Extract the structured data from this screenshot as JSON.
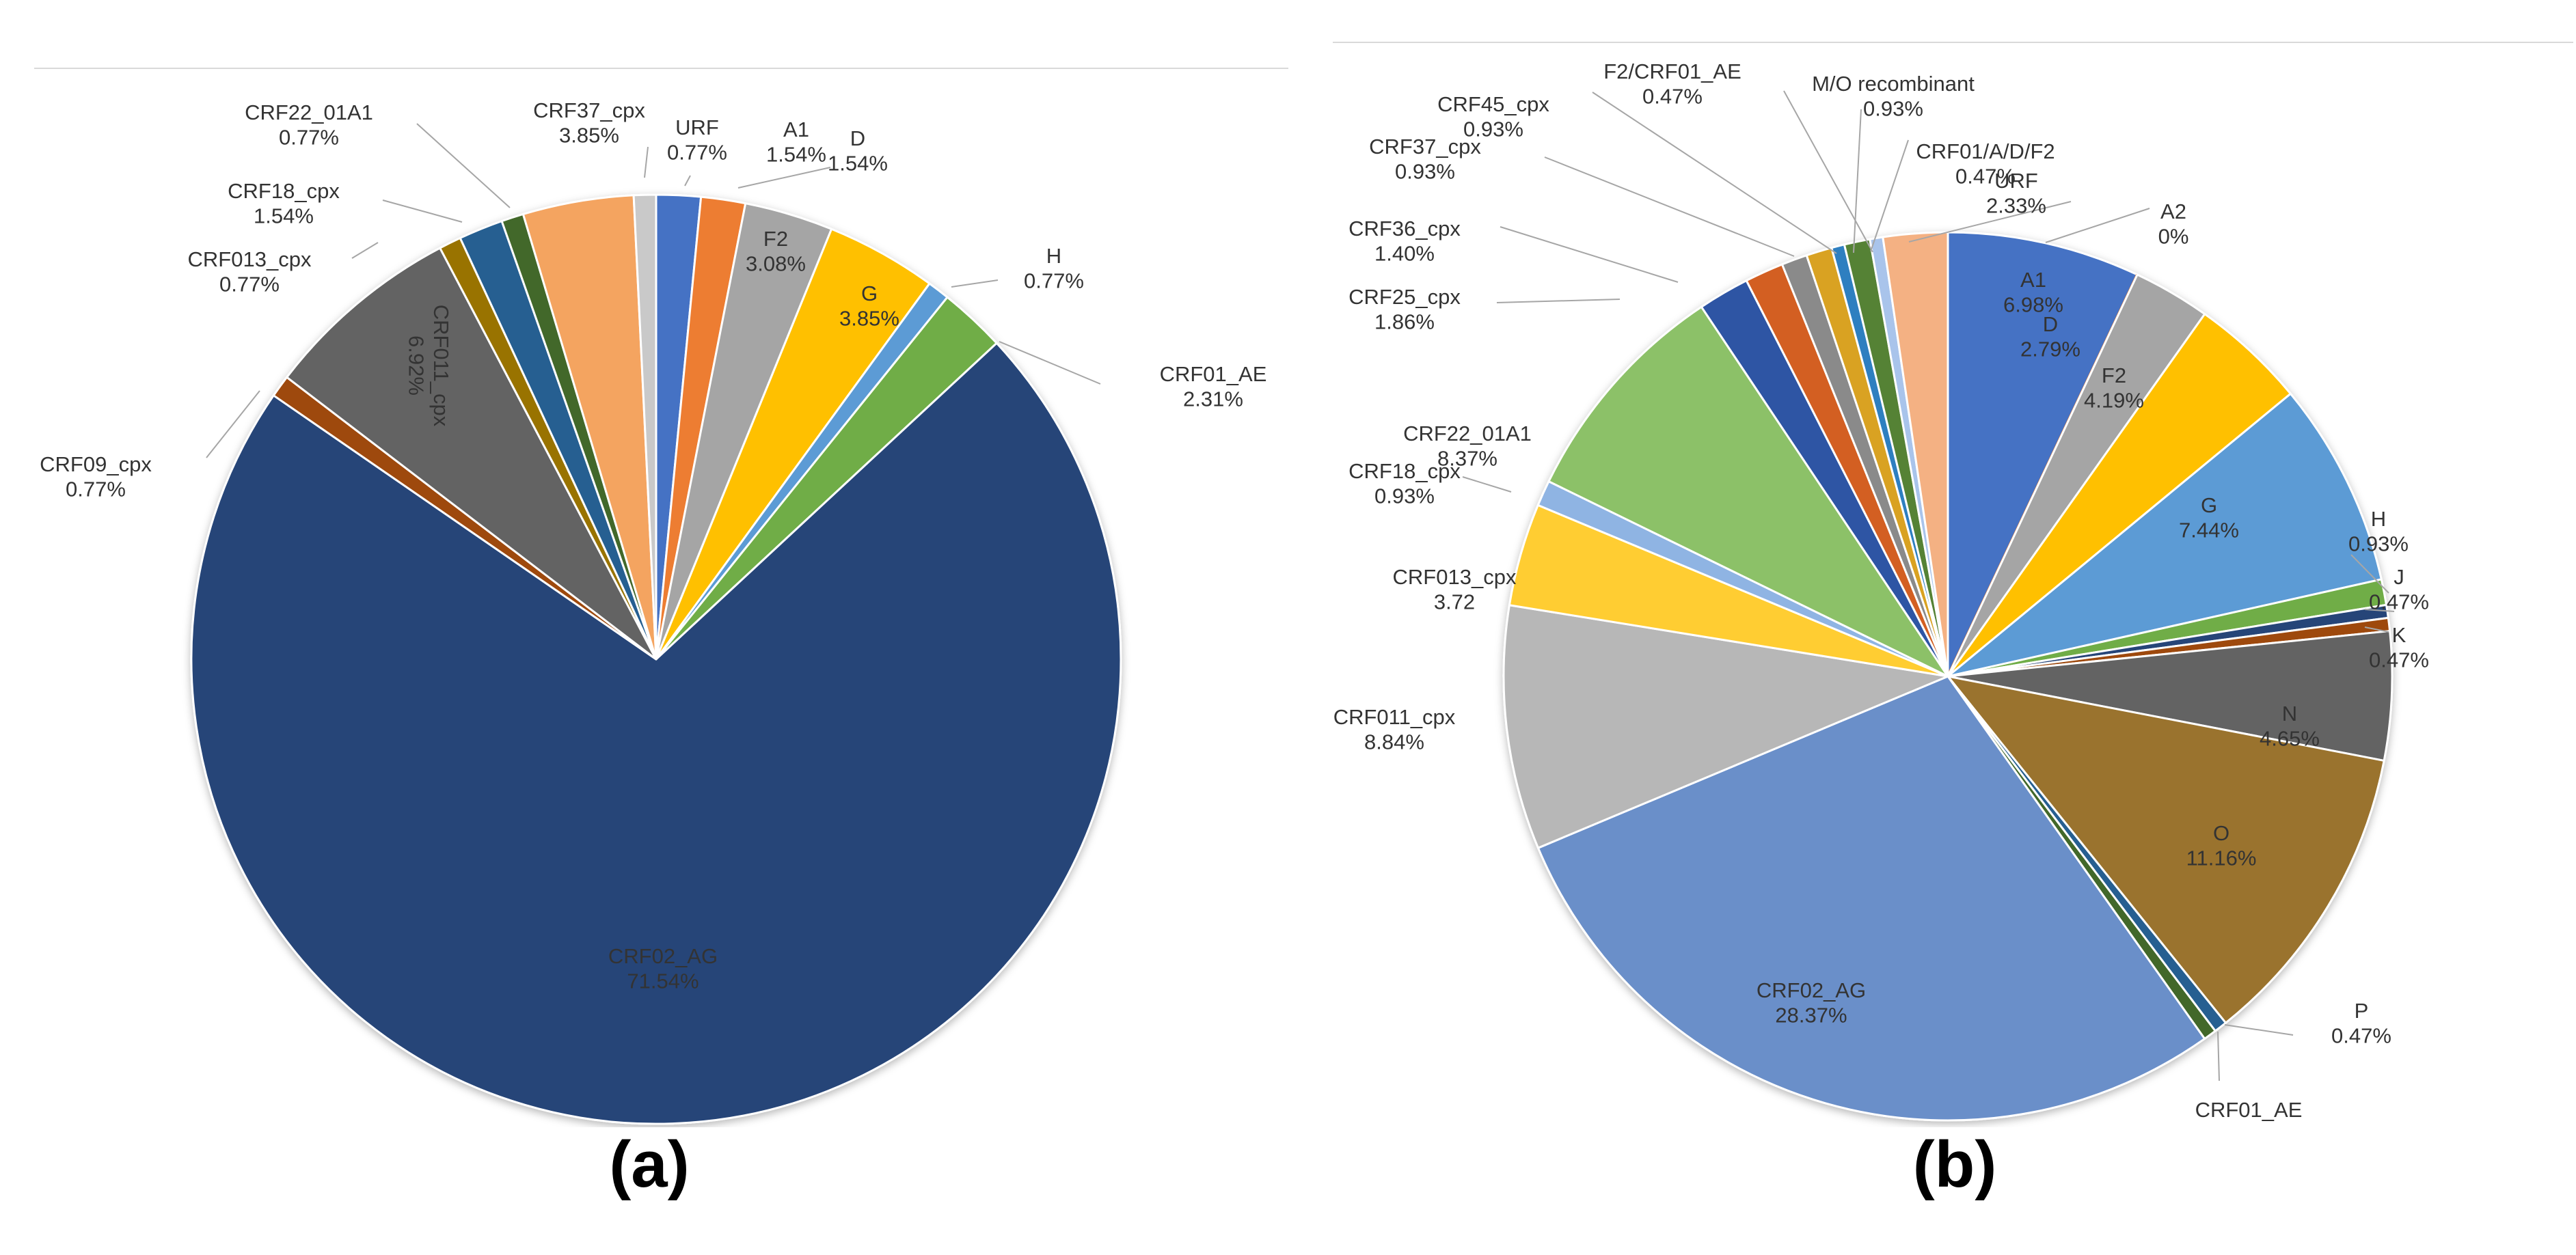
{
  "chart_data": [
    {
      "type": "pie",
      "caption": "(a)",
      "start_angle_deg": 0,
      "direction": "clockwise",
      "slices": [
        {
          "label": "A1",
          "pct": "1.54%",
          "value": 1.54,
          "color": "#4472c4"
        },
        {
          "label": "D",
          "pct": "1.54%",
          "value": 1.54,
          "color": "#ed7d31"
        },
        {
          "label": "F2",
          "pct": "3.08%",
          "value": 3.08,
          "color": "#a5a5a5"
        },
        {
          "label": "G",
          "pct": "3.85%",
          "value": 3.85,
          "color": "#ffc000"
        },
        {
          "label": "H",
          "pct": "0.77%",
          "value": 0.77,
          "color": "#5b9bd5"
        },
        {
          "label": "CRF01_AE",
          "pct": "2.31%",
          "value": 2.31,
          "color": "#70ad47"
        },
        {
          "label": "CRF02_AG",
          "pct": "71.54%",
          "value": 71.54,
          "color": "#264478"
        },
        {
          "label": "CRF09_cpx",
          "pct": "0.77%",
          "value": 0.77,
          "color": "#9e480e"
        },
        {
          "label": "CRF011_cpx",
          "pct": "6.92%",
          "value": 6.92,
          "color": "#636363"
        },
        {
          "label": "CRF013_cpx",
          "pct": "0.77%",
          "value": 0.77,
          "color": "#997300"
        },
        {
          "label": "CRF18_cpx",
          "pct": "1.54%",
          "value": 1.54,
          "color": "#255e91"
        },
        {
          "label": "CRF22_01A1",
          "pct": "0.77%",
          "value": 0.77,
          "color": "#43682b"
        },
        {
          "label": "CRF37_cpx",
          "pct": "3.85%",
          "value": 3.85,
          "color": "#f4a460"
        },
        {
          "label": "URF",
          "pct": "0.77%",
          "value": 0.77,
          "color": "#c9c9c9"
        }
      ]
    },
    {
      "type": "pie",
      "caption": "(b)",
      "start_angle_deg": 0,
      "direction": "clockwise",
      "slices": [
        {
          "label": "A1",
          "pct": "6.98%",
          "value": 6.98,
          "color": "#4472c4"
        },
        {
          "label": "A2",
          "pct": "0%",
          "value": 0.0,
          "color": "#ed7d31"
        },
        {
          "label": "D",
          "pct": "2.79%",
          "value": 2.79,
          "color": "#a5a5a5"
        },
        {
          "label": "F2",
          "pct": "4.19%",
          "value": 4.19,
          "color": "#ffc000"
        },
        {
          "label": "G",
          "pct": "7.44%",
          "value": 7.44,
          "color": "#5b9bd5"
        },
        {
          "label": "H",
          "pct": "0.93%",
          "value": 0.93,
          "color": "#70ad47"
        },
        {
          "label": "J",
          "pct": "0.47%",
          "value": 0.47,
          "color": "#264478"
        },
        {
          "label": "K",
          "pct": "0.47%",
          "value": 0.47,
          "color": "#9e480e"
        },
        {
          "label": "N",
          "pct": "4.65%",
          "value": 4.65,
          "color": "#636363"
        },
        {
          "label": "O",
          "pct": "11.16%",
          "value": 11.16,
          "color": "#9a732e"
        },
        {
          "label": "P",
          "pct": "0.47%",
          "value": 0.47,
          "color": "#255e91"
        },
        {
          "label": "CRF01_AE",
          "pct": "0.47%",
          "value": 0.47,
          "color": "#43682b"
        },
        {
          "label": "CRF02_AG",
          "pct": "28.37%",
          "value": 28.37,
          "color": "#6b8fc9"
        },
        {
          "label": "CRF011_cpx",
          "pct": "8.84%",
          "value": 8.84,
          "color": "#b7b7b7"
        },
        {
          "label": "CRF013_cpx",
          "pct": "3.72",
          "value": 3.72,
          "color": "#ffcd33"
        },
        {
          "label": "CRF18_cpx",
          "pct": "0.93%",
          "value": 0.93,
          "color": "#8fb4e3"
        },
        {
          "label": "CRF22_01A1",
          "pct": "8.37%",
          "value": 8.37,
          "color": "#8cc168"
        },
        {
          "label": "CRF25_cpx",
          "pct": "1.86%",
          "value": 1.86,
          "color": "#2f55a4"
        },
        {
          "label": "CRF36_cpx",
          "pct": "1.40%",
          "value": 1.4,
          "color": "#d35f23"
        },
        {
          "label": "CRF37_cpx",
          "pct": "0.93%",
          "value": 0.93,
          "color": "#8a8a8a"
        },
        {
          "label": "CRF45_cpx",
          "pct": "0.93%",
          "value": 0.93,
          "color": "#d9a221"
        },
        {
          "label": "F2/CRF01_AE",
          "pct": "0.47%",
          "value": 0.47,
          "color": "#2e7fc0"
        },
        {
          "label": "M/O recombinant",
          "pct": "0.93%",
          "value": 0.93,
          "color": "#548235"
        },
        {
          "label": "CRF01/A/D/F2",
          "pct": "0.47%",
          "value": 0.47,
          "color": "#a9c4eb"
        },
        {
          "label": "URF",
          "pct": "2.33%",
          "value": 2.33,
          "color": "#f4b183"
        }
      ]
    }
  ]
}
